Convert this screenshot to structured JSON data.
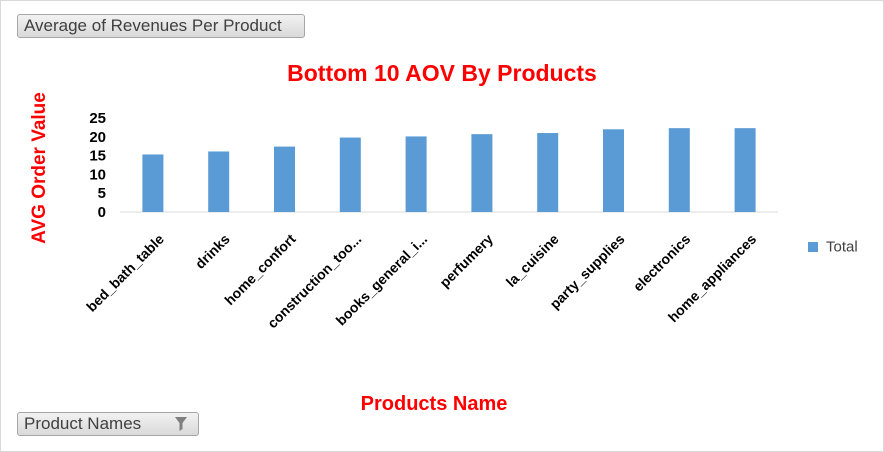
{
  "pivot": {
    "value_field": "Average of Revenues Per Product",
    "axis_field": "Product Names"
  },
  "legend_label": "Total",
  "colors": {
    "bar": "#5b9bd5",
    "title": "#ff0000"
  },
  "chart_data": {
    "type": "bar",
    "title": "Bottom 10 AOV By Products",
    "xlabel": "Products Name",
    "ylabel": "AVG Order Value",
    "ylim": [
      0,
      25
    ],
    "yticks": [
      0,
      5,
      10,
      15,
      20,
      25
    ],
    "categories": [
      "bed_bath_table",
      "drinks",
      "home_confort",
      "construction_too...",
      "books_general_i...",
      "perfumery",
      "la_cuisine",
      "party_supplies",
      "electronics",
      "home_appliances"
    ],
    "series": [
      {
        "name": "Total",
        "values": [
          15.3,
          16.1,
          17.4,
          19.8,
          20.1,
          20.7,
          21.0,
          22.0,
          22.3,
          22.3
        ]
      }
    ],
    "grid": false,
    "legend_position": "right"
  }
}
